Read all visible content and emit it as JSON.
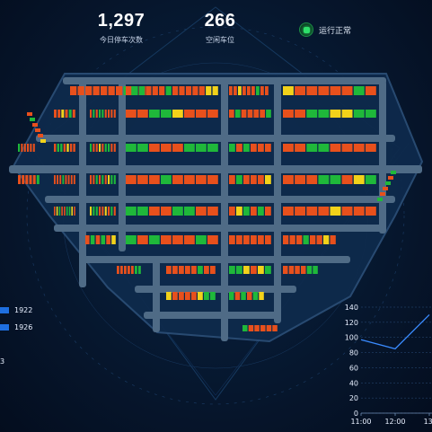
{
  "stats": {
    "today_count": "1,297",
    "today_label": "今日停车次数",
    "free_count": "266",
    "free_label": "空闲车位"
  },
  "status": {
    "label": "运行正常",
    "icon": "status-ok-icon",
    "color": "#2ee06a"
  },
  "left_panel": {
    "rows": [
      {
        "value": "1922"
      },
      {
        "value": "1926"
      }
    ],
    "partial_value": "3"
  },
  "colors": {
    "occupied": "#e8501c",
    "free": "#1fb83a",
    "reserved": "#f2d21a",
    "road": "#4f6b86",
    "lot_bg": "#0e2a4c",
    "accent": "#1e6fe0"
  },
  "chart_data": {
    "type": "line",
    "x": [
      "11:00",
      "12:00",
      "13:"
    ],
    "series": [
      {
        "values": [
          97,
          85,
          130
        ]
      }
    ],
    "y_ticks": [
      0,
      20,
      40,
      60,
      80,
      100,
      120,
      140
    ],
    "ylim": [
      0,
      140
    ],
    "grid": true
  }
}
